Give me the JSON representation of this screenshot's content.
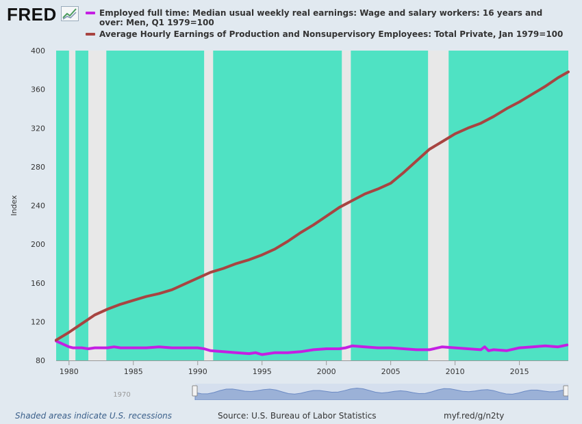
{
  "brand": {
    "logo_text": "FRED",
    "icon": "chart-line-icon"
  },
  "legend": [
    {
      "label": "Employed full time: Median usual weekly real earnings: Wage and salary workers: 16 years and over: Men, Q1 1979=100",
      "color": "#c41fe3"
    },
    {
      "label": "Average Hourly Earnings of Production and Nonsupervisory Employees: Total Private, Jan 1979=100",
      "color": "#a84441"
    }
  ],
  "footer": {
    "recession_note": "Shaded areas indicate U.S. recessions",
    "source": "Source: U.S. Bureau of Labor Statistics",
    "link": "myf.red/g/n2ty"
  },
  "navigator": {
    "label": "1970",
    "color": "#6b8ac4"
  },
  "chart_data": {
    "type": "line",
    "title": "",
    "xlabel": "",
    "ylabel": "Index",
    "xlim": [
      1979,
      2018.8
    ],
    "ylim": [
      80,
      400
    ],
    "x_ticks": [
      1980,
      1985,
      1990,
      1995,
      2000,
      2005,
      2010,
      2015
    ],
    "y_ticks": [
      80,
      120,
      160,
      200,
      240,
      280,
      320,
      360,
      400
    ],
    "grid": false,
    "background_color": "#4fe2c3",
    "recession_color": "#e8e8e8",
    "recessions": [
      [
        1980.0,
        1980.5
      ],
      [
        1981.5,
        1982.9
      ],
      [
        1990.5,
        1991.2
      ],
      [
        2001.2,
        2001.9
      ],
      [
        2007.9,
        2009.5
      ]
    ],
    "series": [
      {
        "name": "Employed full time: Median usual weekly real earnings: Wage and salary workers: 16 years and over: Men, Q1 1979=100",
        "color": "#c41fe3",
        "x": [
          1979,
          1979.5,
          1980,
          1980.3,
          1981,
          1981.5,
          1982,
          1982.5,
          1983,
          1983.5,
          1984,
          1985,
          1986,
          1987,
          1988,
          1989,
          1989.5,
          1990,
          1990.5,
          1991,
          1992,
          1993,
          1994,
          1994.5,
          1995,
          1996,
          1997,
          1998,
          1999,
          2000,
          2001,
          2001.5,
          2002,
          2003,
          2004,
          2005,
          2006,
          2007,
          2008,
          2009,
          2010,
          2011,
          2012,
          2012.3,
          2012.6,
          2013,
          2014,
          2015,
          2016,
          2017,
          2018,
          2018.7
        ],
        "values": [
          100,
          97,
          94,
          93,
          93,
          92,
          93,
          93,
          93,
          94,
          93,
          93,
          93,
          94,
          93,
          93,
          93,
          93,
          92,
          90,
          89,
          88,
          87,
          88,
          86,
          88,
          88,
          89,
          91,
          92,
          92,
          93,
          95,
          94,
          93,
          93,
          92,
          91,
          91,
          94,
          93,
          92,
          91,
          94,
          90,
          91,
          90,
          93,
          94,
          95,
          94,
          96
        ]
      },
      {
        "name": "Average Hourly Earnings of Production and Nonsupervisory Employees: Total Private, Jan 1979=100",
        "color": "#a84441",
        "x": [
          1979,
          1980,
          1981,
          1982,
          1983,
          1984,
          1985,
          1986,
          1987,
          1988,
          1989,
          1990,
          1991,
          1992,
          1993,
          1994,
          1995,
          1996,
          1997,
          1998,
          1999,
          2000,
          2001,
          2002,
          2003,
          2004,
          2005,
          2006,
          2007,
          2008,
          2009,
          2010,
          2011,
          2012,
          2013,
          2014,
          2015,
          2016,
          2017,
          2018,
          2018.8
        ],
        "values": [
          101,
          109,
          118,
          127,
          133,
          138,
          142,
          146,
          149,
          153,
          159,
          165,
          171,
          175,
          180,
          184,
          189,
          195,
          203,
          212,
          220,
          229,
          238,
          245,
          252,
          257,
          263,
          274,
          286,
          298,
          306,
          314,
          320,
          325,
          332,
          340,
          347,
          355,
          363,
          372,
          378
        ]
      }
    ]
  }
}
